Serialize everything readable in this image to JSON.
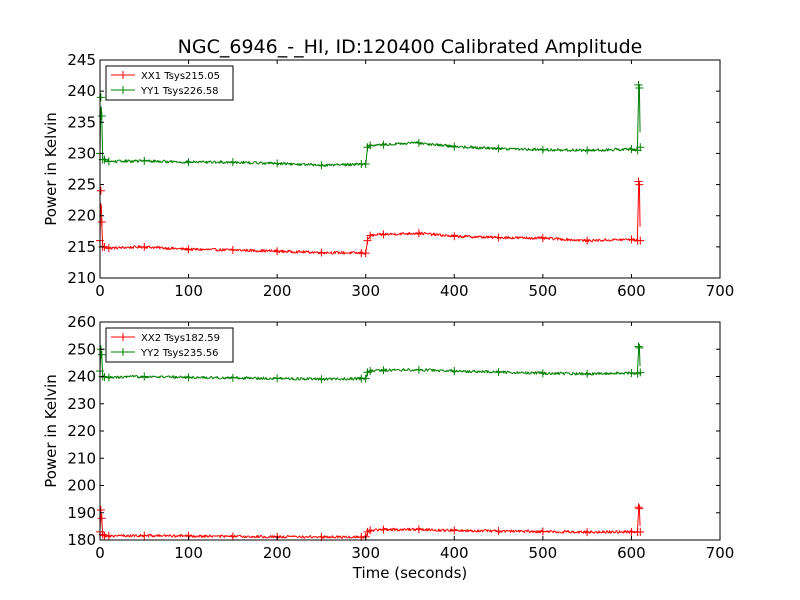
{
  "title": "NGC_6946_-_HI, ID:120400 Calibrated Amplitude",
  "chart_data": [
    {
      "type": "line",
      "title": "NGC_6946_-_HI, ID:120400 Calibrated Amplitude",
      "xlabel": "",
      "ylabel": "Power in Kelvin",
      "xlim": [
        0,
        700
      ],
      "ylim": [
        210,
        245
      ],
      "xticks": [
        "0",
        "100",
        "200",
        "300",
        "400",
        "500",
        "600",
        "700"
      ],
      "yticks": [
        "210",
        "215",
        "220",
        "225",
        "230",
        "235",
        "240",
        "245"
      ],
      "legend_position": "top-left",
      "grid": false,
      "series": [
        {
          "name": "XX1 Tsys215.05",
          "color": "#ff0000",
          "x": [
            0,
            1,
            2,
            3,
            5,
            10,
            50,
            100,
            150,
            200,
            250,
            295,
            300,
            302,
            305,
            320,
            360,
            400,
            450,
            500,
            550,
            600,
            607,
            608,
            609,
            610
          ],
          "y": [
            216,
            224,
            219,
            215,
            215,
            214.8,
            215,
            214.6,
            214.5,
            214.3,
            214.1,
            214.0,
            214.0,
            216,
            216.8,
            217.0,
            217.2,
            216.7,
            216.5,
            216.4,
            216.0,
            216.2,
            216.0,
            225.5,
            225,
            216
          ]
        },
        {
          "name": "YY1 Tsys226.58",
          "color": "#008000",
          "x": [
            0,
            1,
            2,
            3,
            5,
            10,
            50,
            100,
            150,
            200,
            250,
            295,
            300,
            302,
            305,
            320,
            360,
            400,
            450,
            500,
            550,
            600,
            607,
            608,
            609,
            610
          ],
          "y": [
            230,
            239,
            236,
            229,
            229,
            228.7,
            228.8,
            228.6,
            228.6,
            228.4,
            228.1,
            228.3,
            228.3,
            231,
            231.3,
            231.4,
            231.7,
            231.1,
            230.8,
            230.6,
            230.5,
            230.7,
            230.5,
            241,
            240.5,
            231
          ]
        }
      ]
    },
    {
      "type": "line",
      "title": "",
      "xlabel": "Time (seconds)",
      "ylabel": "Power in Kelvin",
      "xlim": [
        0,
        700
      ],
      "ylim": [
        180,
        260
      ],
      "xticks": [
        "0",
        "100",
        "200",
        "300",
        "400",
        "500",
        "600",
        "700"
      ],
      "yticks": [
        "180",
        "190",
        "200",
        "210",
        "220",
        "230",
        "240",
        "250",
        "260"
      ],
      "legend_position": "top-left",
      "grid": false,
      "series": [
        {
          "name": "XX2 Tsys182.59",
          "color": "#ff0000",
          "x": [
            0,
            1,
            2,
            3,
            5,
            10,
            50,
            100,
            150,
            200,
            250,
            295,
            300,
            302,
            305,
            320,
            360,
            400,
            450,
            500,
            550,
            600,
            607,
            608,
            609,
            610
          ],
          "y": [
            183,
            191,
            188,
            182,
            181.6,
            181.5,
            181.6,
            181.5,
            181.3,
            181.2,
            181.1,
            181.1,
            181.2,
            183,
            183.6,
            183.8,
            183.9,
            183.5,
            183.3,
            183.1,
            182.9,
            183.0,
            182.9,
            192,
            191.5,
            183
          ]
        },
        {
          "name": "YY2 Tsys235.56",
          "color": "#008000",
          "x": [
            0,
            1,
            2,
            3,
            5,
            10,
            50,
            100,
            150,
            200,
            250,
            295,
            300,
            302,
            305,
            320,
            360,
            400,
            450,
            500,
            550,
            600,
            607,
            608,
            609,
            610
          ],
          "y": [
            242,
            250,
            248,
            240,
            239.8,
            239.6,
            240.0,
            239.7,
            239.5,
            239.3,
            239.0,
            239.2,
            239.2,
            241.5,
            242.0,
            242.3,
            242.5,
            242.0,
            241.6,
            241.2,
            241.0,
            241.3,
            241.0,
            251,
            250.5,
            241.5
          ]
        }
      ]
    }
  ]
}
